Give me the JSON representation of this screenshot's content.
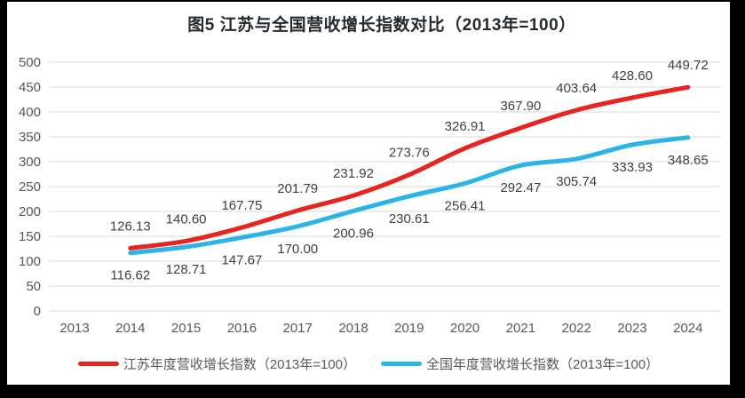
{
  "title": "图5  江苏与全国营收增长指数对比（2013年=100）",
  "colors": {
    "jiangsu_line": "#e62420",
    "national_line": "#2ab4e8",
    "gridline": "#d9d9d9",
    "axis_text": "#595959",
    "data_label_text": "#404040",
    "title_text": "#24292f",
    "scan_border": "#000000"
  },
  "chart_data": {
    "type": "line",
    "title": "图5  江苏与全国营收增长指数对比（2013年=100）",
    "categories": [
      "2013",
      "2014",
      "2015",
      "2016",
      "2017",
      "2018",
      "2019",
      "2020",
      "2021",
      "2022",
      "2023",
      "2024"
    ],
    "series": [
      {
        "name": "江苏年度营收增长指数（2013年=100）",
        "color": "#e62420",
        "values": [
          null,
          126.13,
          140.6,
          167.75,
          201.79,
          231.92,
          273.76,
          326.91,
          367.9,
          403.64,
          428.6,
          449.72
        ]
      },
      {
        "name": "全国年度营收增长指数（2013年=100）",
        "color": "#2ab4e8",
        "values": [
          null,
          116.62,
          128.71,
          147.67,
          170.0,
          200.96,
          230.61,
          256.41,
          292.47,
          305.74,
          333.93,
          348.65
        ]
      }
    ],
    "ylim": [
      0,
      500
    ],
    "ytick_step": 50,
    "grid": true,
    "data_labels": true,
    "legend_position": "bottom",
    "xlabel": "",
    "ylabel": ""
  }
}
